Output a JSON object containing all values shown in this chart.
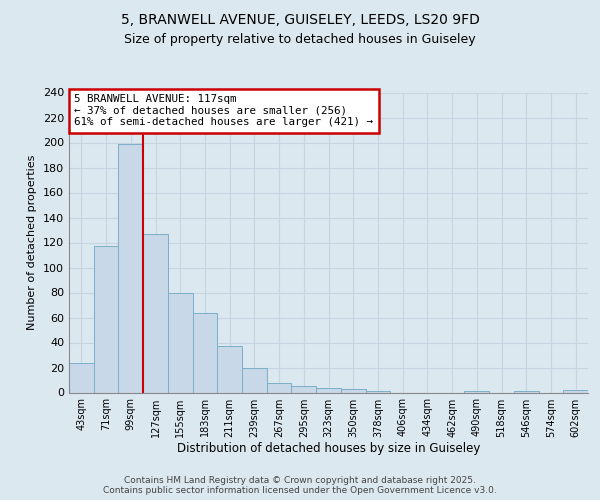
{
  "title1": "5, BRANWELL AVENUE, GUISELEY, LEEDS, LS20 9FD",
  "title2": "Size of property relative to detached houses in Guiseley",
  "xlabel": "Distribution of detached houses by size in Guiseley",
  "ylabel": "Number of detached properties",
  "bin_labels": [
    "43sqm",
    "71sqm",
    "99sqm",
    "127sqm",
    "155sqm",
    "183sqm",
    "211sqm",
    "239sqm",
    "267sqm",
    "295sqm",
    "323sqm",
    "350sqm",
    "378sqm",
    "406sqm",
    "434sqm",
    "462sqm",
    "490sqm",
    "518sqm",
    "546sqm",
    "574sqm",
    "602sqm"
  ],
  "bar_values": [
    24,
    117,
    199,
    127,
    80,
    64,
    37,
    20,
    8,
    5,
    4,
    3,
    1,
    0,
    0,
    0,
    1,
    0,
    1,
    0,
    2
  ],
  "bar_color": "#c8d8e8",
  "bar_edge_color": "#7aafc8",
  "grid_color": "#c8d4e0",
  "background_color": "#dce8f0",
  "page_background": "#dce8f0",
  "annotation_box_text": "5 BRANWELL AVENUE: 117sqm\n← 37% of detached houses are smaller (256)\n61% of semi-detached houses are larger (421) →",
  "annotation_box_color": "#ffffff",
  "annotation_box_edge_color": "#cc0000",
  "vline_color": "#cc0000",
  "vline_idx": 2.5,
  "footer_text": "Contains HM Land Registry data © Crown copyright and database right 2025.\nContains public sector information licensed under the Open Government Licence v3.0.",
  "ylim": [
    0,
    240
  ],
  "yticks": [
    0,
    20,
    40,
    60,
    80,
    100,
    120,
    140,
    160,
    180,
    200,
    220,
    240
  ]
}
